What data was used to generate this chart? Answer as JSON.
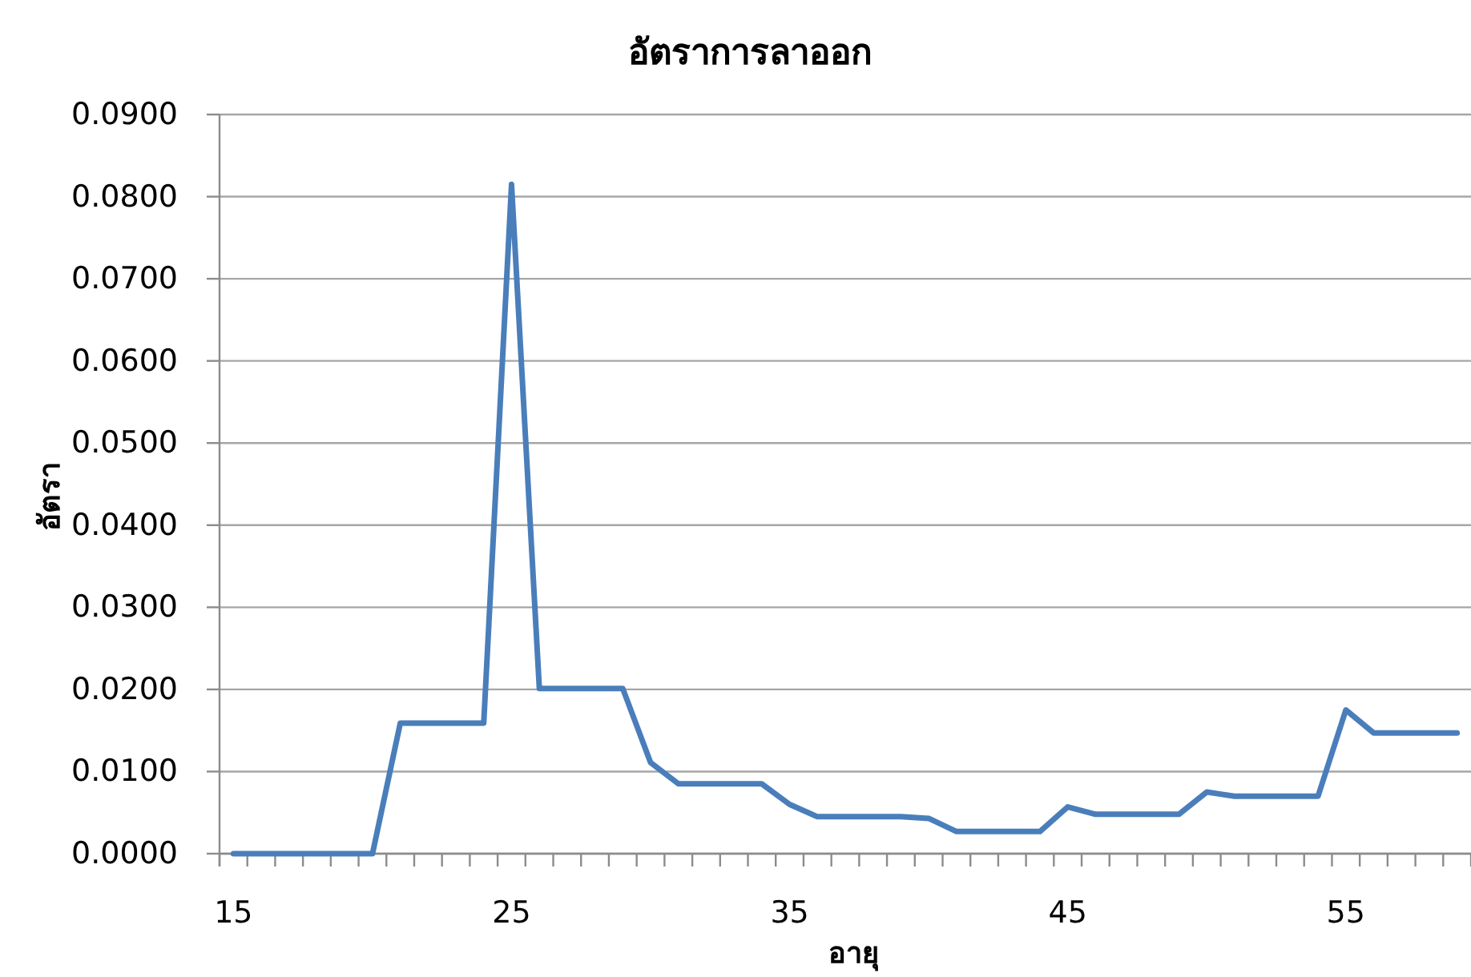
{
  "chart_data": {
    "type": "line",
    "title": "อัตราการลาออก",
    "xlabel": "อายุ",
    "ylabel": "อัตรา",
    "categories": [
      "15",
      null,
      null,
      null,
      null,
      null,
      null,
      null,
      null,
      null,
      "25",
      null,
      null,
      null,
      null,
      null,
      null,
      null,
      null,
      null,
      "35",
      null,
      null,
      null,
      null,
      null,
      null,
      null,
      null,
      null,
      "45",
      null,
      null,
      null,
      null,
      null,
      null,
      null,
      null,
      null,
      "55",
      null,
      null,
      null,
      null
    ],
    "series": [
      {
        "color": "#4a7ebb",
        "values": [
          0.0,
          0.0,
          0.0,
          0.0,
          0.0,
          0.0,
          0.0159,
          0.0159,
          0.0159,
          0.0159,
          0.0815,
          0.0201,
          0.0201,
          0.0201,
          0.0201,
          0.0111,
          0.0085,
          0.0085,
          0.0085,
          0.0085,
          0.006,
          0.0045,
          0.0045,
          0.0045,
          0.0045,
          0.0043,
          0.0027,
          0.0027,
          0.0027,
          0.0027,
          0.0057,
          0.0048,
          0.0048,
          0.0048,
          0.0048,
          0.0075,
          0.007,
          0.007,
          0.007,
          0.007,
          0.0175,
          0.0147,
          0.0147,
          0.0147,
          0.0147
        ]
      }
    ],
    "ylim": [
      0,
      0.09
    ],
    "yticks": [
      {
        "value": 0,
        "label": "0.0000"
      },
      {
        "value": 0.01,
        "label": "0.0100"
      },
      {
        "value": 0.02,
        "label": "0.0200"
      },
      {
        "value": 0.03,
        "label": "0.0300"
      },
      {
        "value": 0.04,
        "label": "0.0400"
      },
      {
        "value": 0.05,
        "label": "0.0500"
      },
      {
        "value": 0.06,
        "label": "0.0600"
      },
      {
        "value": 0.07,
        "label": "0.0700"
      },
      {
        "value": 0.08,
        "label": "0.0800"
      },
      {
        "value": 0.09,
        "label": "0.0900"
      }
    ],
    "grid": "y"
  }
}
